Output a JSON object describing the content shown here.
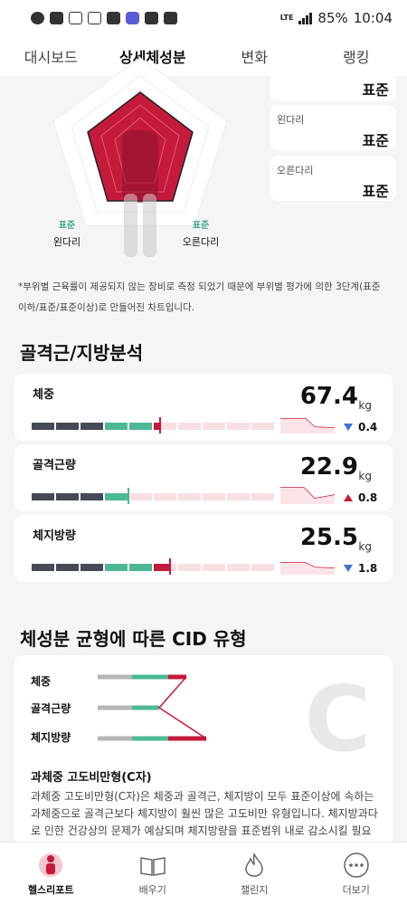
{
  "status_bar": {
    "battery": "85%",
    "time": "10:04",
    "network": "LTE"
  },
  "tabs": [
    {
      "label": "대시보드"
    },
    {
      "label": "상세체성분"
    },
    {
      "label": "변화"
    },
    {
      "label": "랭킹"
    }
  ],
  "body_figure": {
    "side_cards": [
      {
        "label": "",
        "value": "표준"
      },
      {
        "label": "왼다리",
        "value": "표준"
      },
      {
        "label": "오른다리",
        "value": "표준"
      }
    ],
    "limbs": [
      {
        "status": "표준",
        "name": "왼다리"
      },
      {
        "status": "표준",
        "name": "오른다리"
      }
    ]
  },
  "note": "*부위별 근육률이 제공되지 않는 장비로 측정 되었기 때문에 부위별 평가에 의한 3단계(표준이하/표준/표준이상)로 만들어진 차트입니다.",
  "section_title": "골격근/지방분석",
  "metrics": [
    {
      "name": "체중",
      "value": "67.4",
      "unit": "kg",
      "delta": "0.4",
      "direction": "down",
      "level": 0.53
    },
    {
      "name": "골격근량",
      "value": "22.9",
      "unit": "kg",
      "delta": "0.8",
      "direction": "up",
      "level": 0.4
    },
    {
      "name": "체지방량",
      "value": "25.5",
      "unit": "kg",
      "delta": "1.8",
      "direction": "down",
      "level": 0.57
    }
  ],
  "cid": {
    "section_title": "체성분 균형에 따른 CID 유형",
    "rows": [
      "체중",
      "골격근량",
      "체지방량"
    ],
    "letter": "C",
    "type_title": "과체중 고도비만형(C자)",
    "description": "과체중 고도비만형(C자)은 체중과 골격근, 체지방이 모두 표준이상에 속하는 과체중으로 골격근보다 체지방이 훨씬 많은 고도비만 유형입니다. 체지방과다로 인한 건강상의 문제가 예상되며 체지방량을 표준범위 내로 감소시킬 필요성이 있습니다."
  },
  "bottom_nav": [
    {
      "label": "헬스리포트",
      "icon": "health-report-icon"
    },
    {
      "label": "배우기",
      "icon": "book-icon"
    },
    {
      "label": "챌린지",
      "icon": "flame-icon"
    },
    {
      "label": "더보기",
      "icon": "more-icon"
    }
  ],
  "colors": {
    "accent": "#c41a3b",
    "normal": "#4cb896",
    "under": "#454a57",
    "over_light": "#f8dfe4",
    "delta_down": "#3b73d6"
  }
}
